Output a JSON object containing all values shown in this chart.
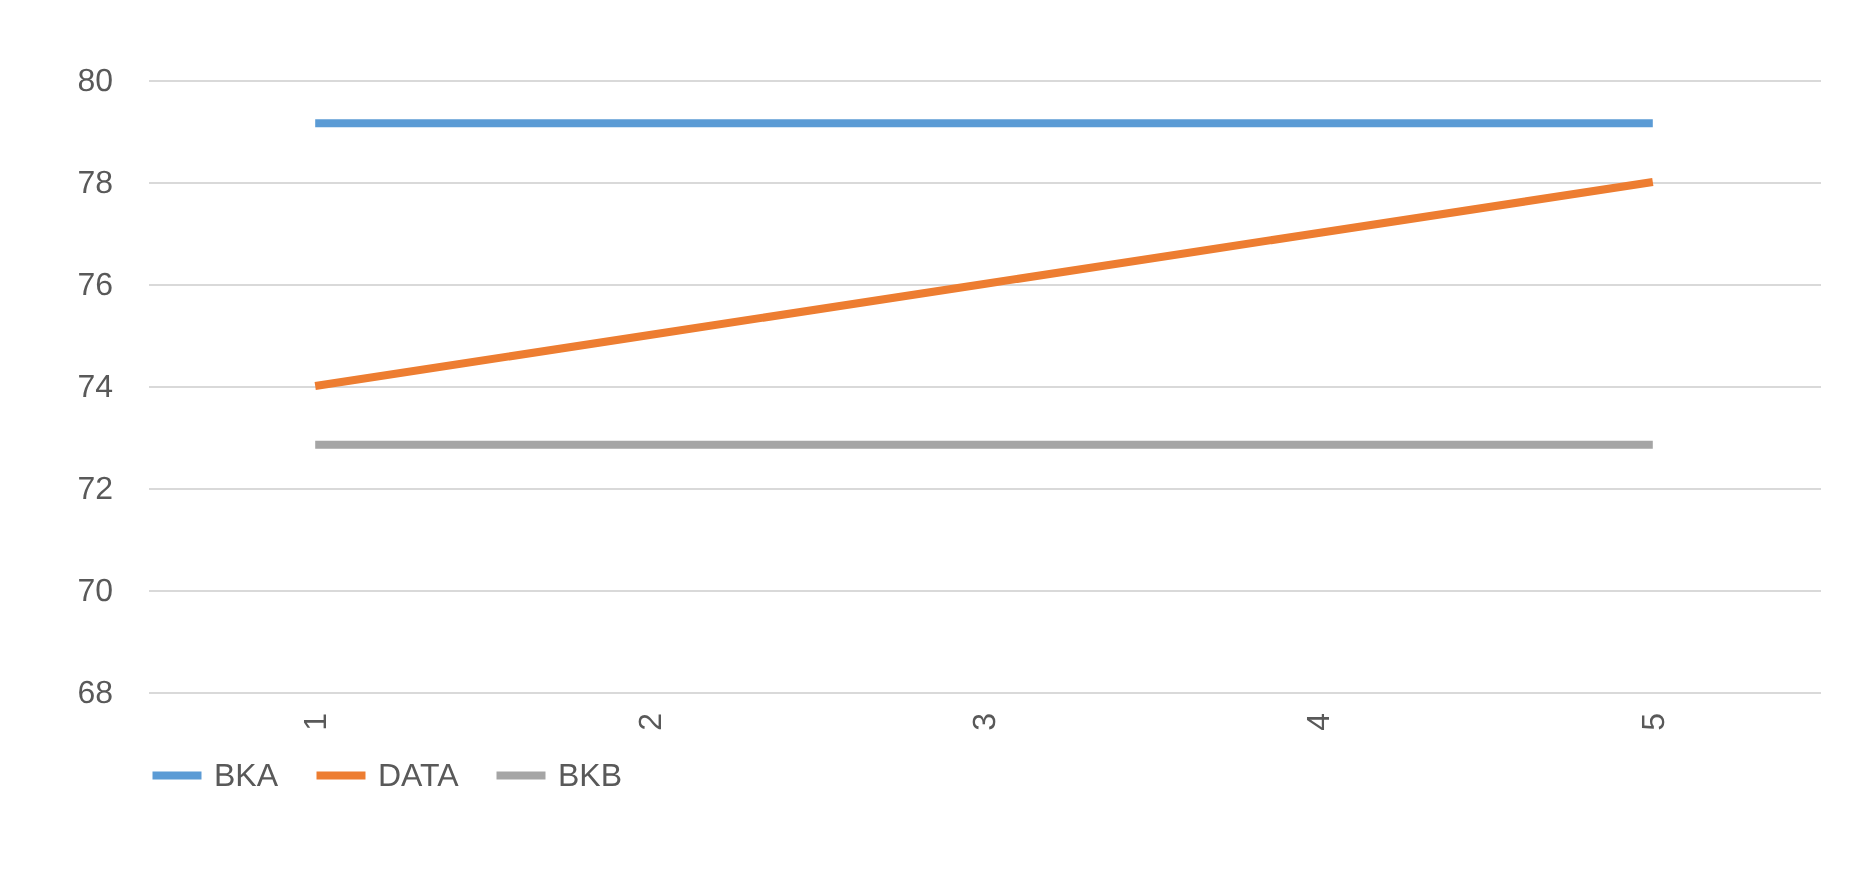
{
  "chart_data": {
    "type": "line",
    "categories": [
      "1",
      "2",
      "3",
      "4",
      "5"
    ],
    "series": [
      {
        "name": "BKA",
        "color": "#5b9bd5",
        "values": [
          79.15,
          79.15,
          79.15,
          79.15,
          79.15
        ]
      },
      {
        "name": "DATA",
        "color": "#ed7d31",
        "values": [
          74,
          75,
          76,
          77,
          78
        ]
      },
      {
        "name": "BKB",
        "color": "#a5a5a5",
        "values": [
          72.85,
          72.85,
          72.85,
          72.85,
          72.85
        ]
      }
    ],
    "ylim": [
      68,
      80
    ],
    "yticks": [
      68,
      70,
      72,
      74,
      76,
      78,
      80
    ],
    "grid": "y",
    "legend": "bottom",
    "line_style": "solid",
    "marker": "none"
  }
}
